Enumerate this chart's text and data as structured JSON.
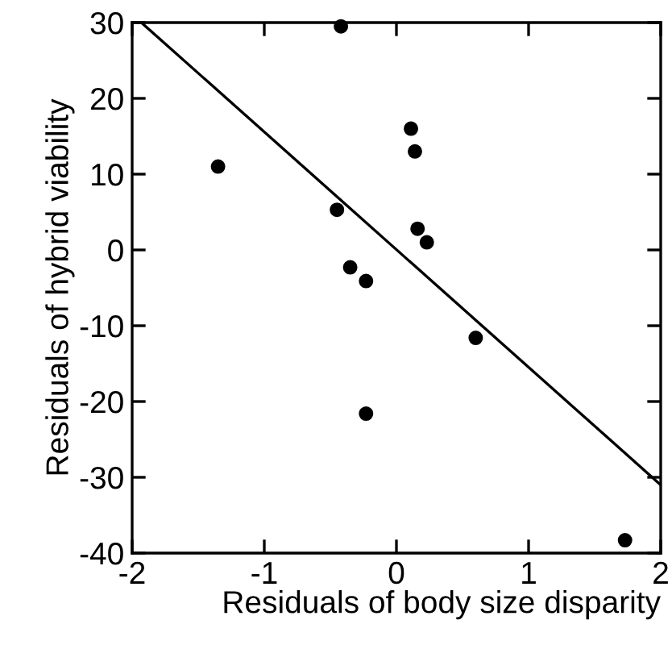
{
  "chart_data": {
    "type": "scatter",
    "xlabel": "Residuals of body size disparity",
    "ylabel": "Residuals of hybrid viability",
    "xlim": [
      -2,
      2
    ],
    "ylim": [
      -40,
      30
    ],
    "xticks": [
      -2,
      -1,
      0,
      1,
      2
    ],
    "yticks": [
      -40,
      -30,
      -20,
      -10,
      0,
      10,
      20,
      30
    ],
    "grid": false,
    "legend": false,
    "series": [
      {
        "color": "#000000",
        "marker": "circle",
        "x": [
          -1.35,
          -0.42,
          0.11,
          0.14,
          -0.45,
          -0.35,
          -0.23,
          0.16,
          0.23,
          0.6,
          -0.23,
          1.73
        ],
        "values": [
          11,
          29.5,
          16,
          13,
          5.3,
          -2.3,
          -4.1,
          2.8,
          1,
          -11.6,
          -21.6,
          -38.3
        ]
      },
      {
        "type": "line",
        "color": "#000000",
        "line_style": "solid",
        "x": [
          -1.93,
          2
        ],
        "values": [
          30,
          -31
        ]
      }
    ]
  }
}
